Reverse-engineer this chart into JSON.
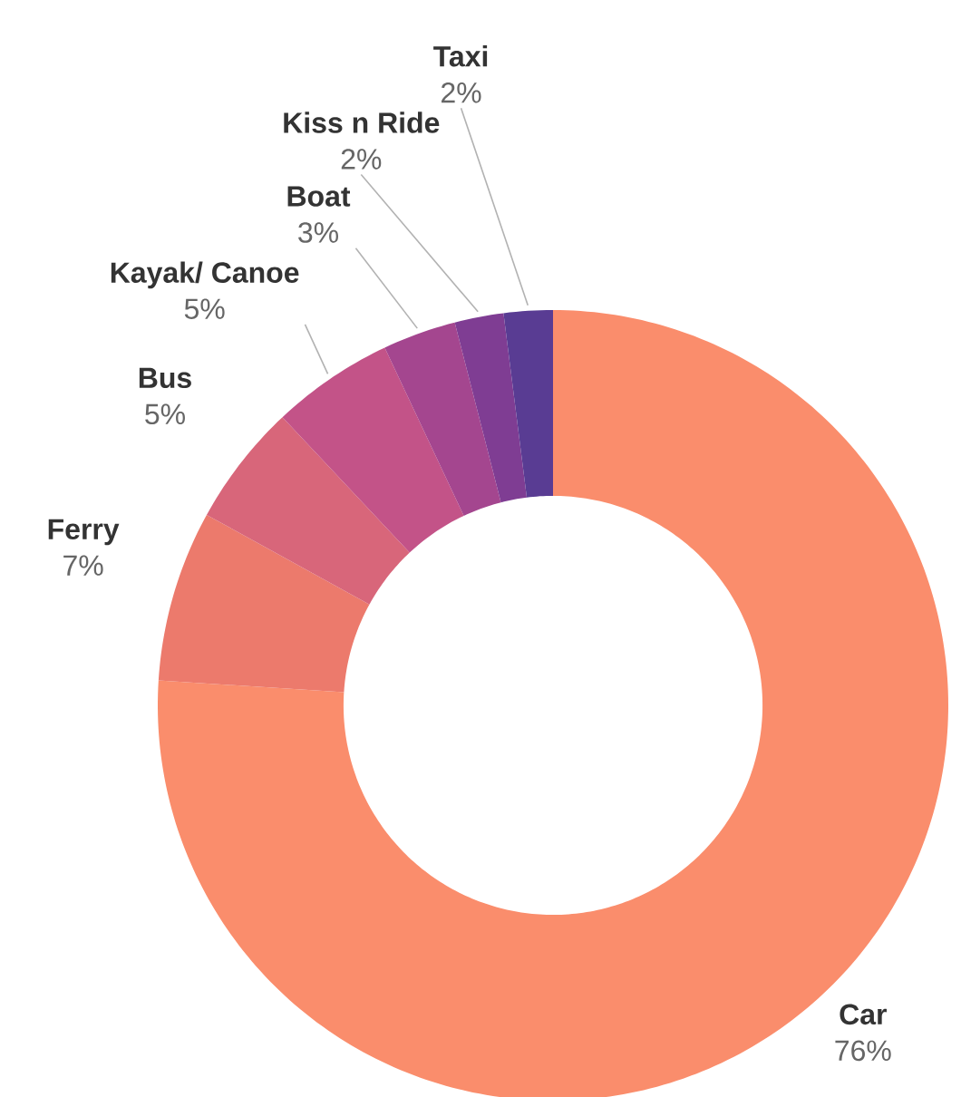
{
  "chart_data": {
    "type": "donut",
    "categories": [
      "Car",
      "Ferry",
      "Bus",
      "Kayak/ Canoe",
      "Boat",
      "Kiss n Ride",
      "Taxi"
    ],
    "values": [
      76,
      7,
      5,
      5,
      3,
      2,
      2
    ],
    "value_labels": [
      "76%",
      "7%",
      "5%",
      "5%",
      "3%",
      "2%",
      "2%"
    ],
    "colors": [
      "#fa8d6c",
      "#ec7a6c",
      "#d8667a",
      "#c35388",
      "#a4468f",
      "#7f3d93",
      "#593c93"
    ]
  }
}
